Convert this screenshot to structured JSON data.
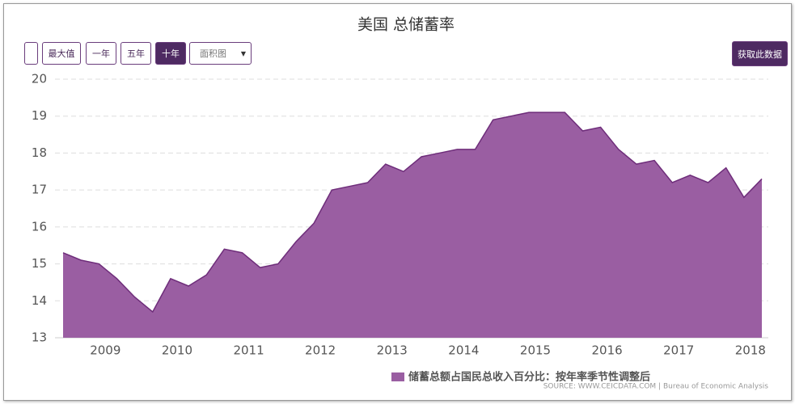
{
  "controls": {
    "buttons": [
      "最大值",
      "一年",
      "五年",
      "十年"
    ],
    "dropdown": "面积图",
    "download": "获取此数据"
  },
  "chart_data": {
    "type": "area",
    "title": "美国 总储蓄率",
    "x": [
      2008.5,
      2008.75,
      2009,
      2009.25,
      2009.5,
      2009.75,
      2010,
      2010.25,
      2010.5,
      2010.75,
      2011,
      2011.25,
      2011.5,
      2011.75,
      2012,
      2012.25,
      2012.5,
      2012.75,
      2013,
      2013.25,
      2013.5,
      2013.75,
      2014,
      2014.25,
      2014.5,
      2014.75,
      2015,
      2015.25,
      2015.5,
      2015.75,
      2016,
      2016.25,
      2016.5,
      2016.75,
      2017,
      2017.25,
      2017.5,
      2017.75,
      2018,
      2018.25
    ],
    "series": [
      {
        "name": "储蓄总额占国民总收入百分比：按年率季节性调整后",
        "color": "#9a5ea2",
        "values": [
          15.3,
          15.1,
          15.0,
          14.6,
          14.1,
          13.7,
          14.6,
          14.4,
          14.7,
          15.4,
          15.3,
          14.9,
          15.0,
          15.6,
          16.1,
          17.0,
          17.1,
          17.2,
          17.7,
          17.5,
          17.9,
          18.0,
          18.1,
          18.1,
          18.9,
          19.0,
          19.1,
          19.1,
          19.1,
          18.6,
          18.7,
          18.1,
          17.7,
          17.8,
          17.2,
          17.4,
          17.2,
          17.6,
          16.8,
          17.3
        ]
      }
    ],
    "xlim": [
      2008.5,
      2018.25
    ],
    "xticks": [
      2009,
      2010,
      2011,
      2012,
      2013,
      2014,
      2015,
      2016,
      2017,
      2018
    ],
    "ylim": [
      13,
      20
    ],
    "yticks": [
      13,
      14,
      15,
      16,
      17,
      18,
      19,
      20
    ],
    "grid": true,
    "source": "SOURCE: WWW.CEICDATA.COM | Bureau of Economic Analysis"
  }
}
